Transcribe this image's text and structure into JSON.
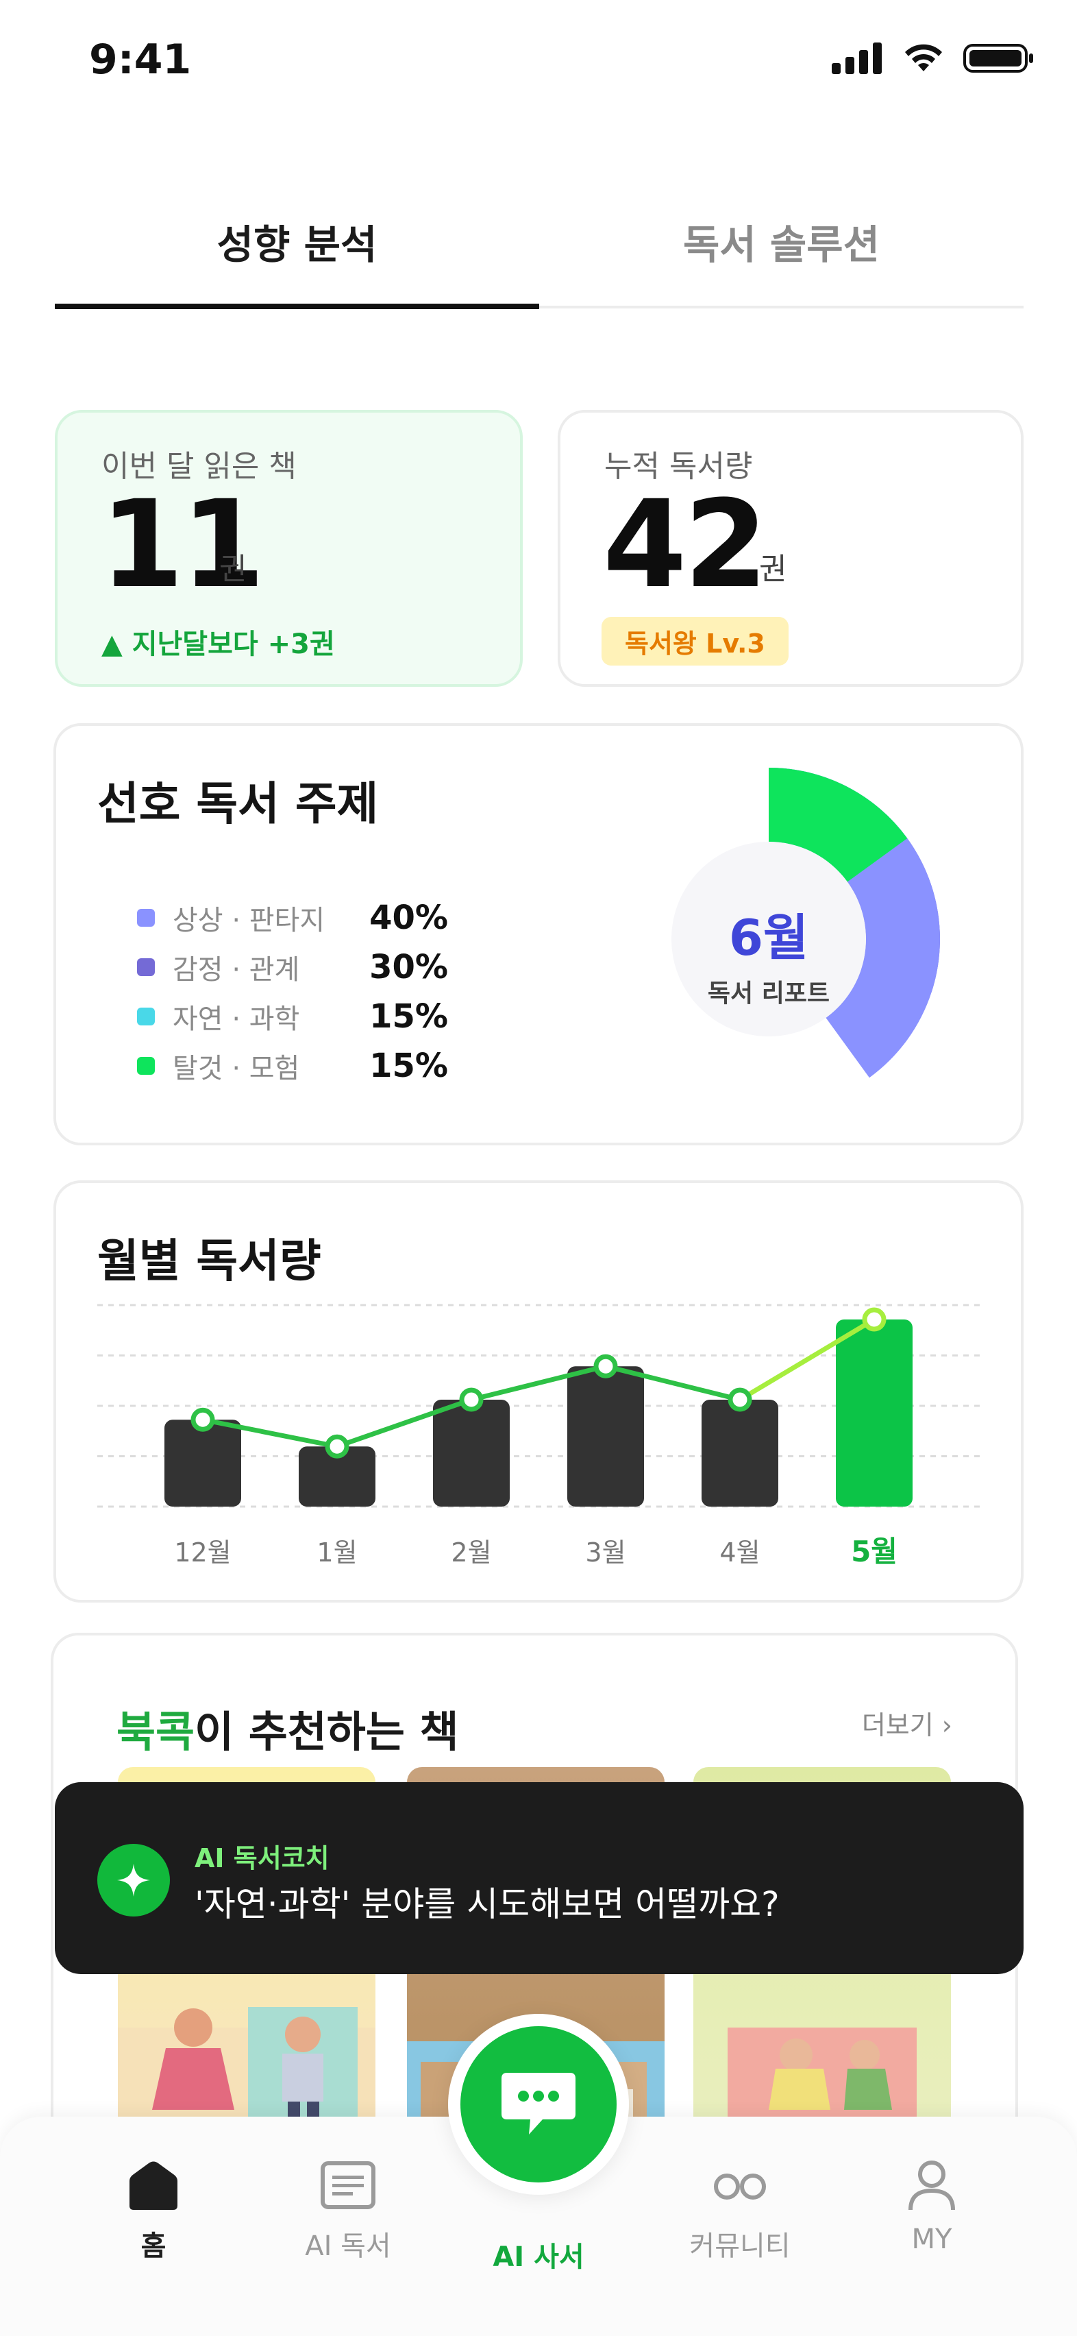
{
  "status_bar": {
    "time": "9:41"
  },
  "tabs": [
    {
      "label": "성향 분석",
      "active": true
    },
    {
      "label": "독서 솔루션",
      "active": false
    }
  ],
  "stats": {
    "month": {
      "label": "이번 달  읽은 책",
      "value": "11",
      "unit": "권",
      "change": "▲ 지난달보다 +3권"
    },
    "total": {
      "label": "누적 독서량",
      "value": "42",
      "unit": "권",
      "badge": "독서왕 Lv.3"
    }
  },
  "topics": {
    "title": "선호 독서 주제",
    "center_month": "6월",
    "center_sub": "독서 리포트",
    "items": [
      {
        "name": "상상 · 판타지",
        "value": "40%",
        "color": "#8a92ff"
      },
      {
        "name": "감정 · 관계",
        "value": "30%",
        "color": "#746ad6"
      },
      {
        "name": "자연 · 과학",
        "value": "15%",
        "color": "#49d8e8"
      },
      {
        "name": "탈것 · 모험",
        "value": "15%",
        "color": "#0ee45c"
      }
    ]
  },
  "monthly": {
    "title": "월별 독서량"
  },
  "chart_data": {
    "type": "bar",
    "categories": [
      "12월",
      "1월",
      "2월",
      "3월",
      "4월",
      "5월"
    ],
    "values": [
      6.5,
      4.5,
      8,
      10.5,
      8,
      14
    ],
    "highlight_index": 5,
    "ylim": [
      0,
      16
    ],
    "grid": true,
    "line_overlay": true,
    "colors": {
      "bar": "#333333",
      "highlight": "#0cc447",
      "line": "#2ec146",
      "line_highlight": "#a6ee3e"
    }
  },
  "recommend": {
    "brand": "북콕",
    "title_rest": "이 추천하는 책",
    "more": "더보기 ›"
  },
  "toast": {
    "label": "AI 독서코치",
    "message": "'자연·과학' 분야를 시도해보면 어떨까요?"
  },
  "nav": [
    {
      "label": "홈"
    },
    {
      "label": "AI 독서"
    },
    {
      "label": "AI 사서"
    },
    {
      "label": "커뮤니티"
    },
    {
      "label": "MY"
    }
  ]
}
